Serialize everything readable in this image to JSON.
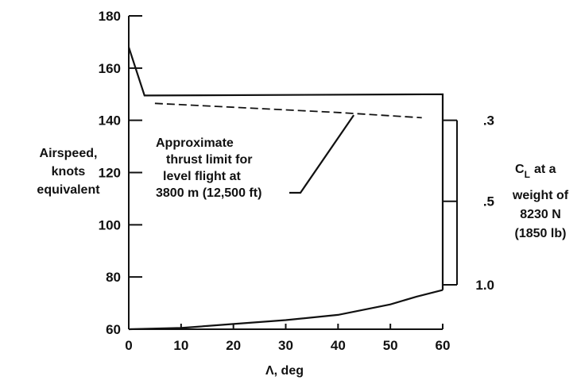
{
  "chart_data": {
    "type": "line",
    "xlabel": "Λ, deg",
    "ylabel_lines": [
      "Airspeed,",
      "knots",
      "equivalent"
    ],
    "xlim": [
      0,
      60
    ],
    "ylim": [
      60,
      180
    ],
    "x_ticks": [
      0,
      10,
      20,
      30,
      40,
      50,
      60
    ],
    "y_ticks": [
      60,
      80,
      100,
      120,
      140,
      160,
      180
    ],
    "series": [
      {
        "style": "solid",
        "x": [
          0,
          3,
          60,
          60
        ],
        "y": [
          168,
          149.5,
          150,
          75
        ]
      },
      {
        "style": "solid",
        "x": [
          0,
          10,
          20,
          30,
          40,
          50,
          55,
          60
        ],
        "y": [
          60,
          60.5,
          62,
          63.5,
          65.5,
          69.5,
          72.5,
          75
        ]
      },
      {
        "style": "dashed",
        "x": [
          5,
          20,
          40,
          56
        ],
        "y": [
          146.5,
          145,
          143,
          141
        ]
      }
    ],
    "annotation": {
      "lines": [
        "Approximate",
        "thrust limit for",
        "level flight at",
        "3800 m (12,500 ft)"
      ],
      "points_to": {
        "x": 43,
        "y": 142
      }
    },
    "right_axis": {
      "title_lines": [
        "at a",
        "weight of",
        "8230 N",
        "(1850 lb)"
      ],
      "title_symbol": "C",
      "title_subscript": "L",
      "ticks": [
        {
          "label": ".3",
          "airspeed": 140
        },
        {
          "label": ".5",
          "airspeed": 109
        },
        {
          "label": "1.0",
          "airspeed": 77
        }
      ]
    }
  }
}
